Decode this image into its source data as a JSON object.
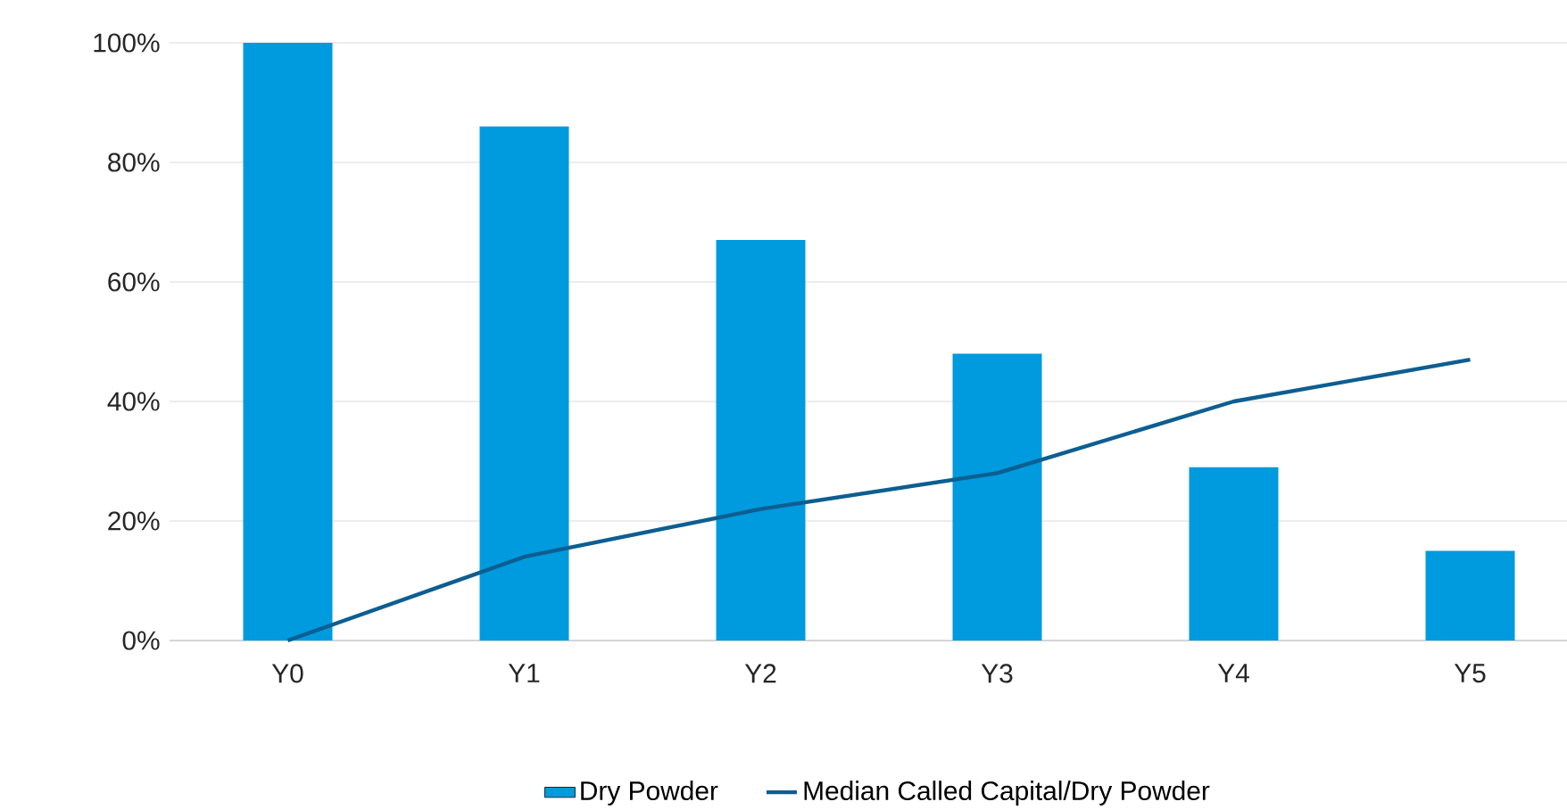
{
  "chart_data": {
    "type": "bar",
    "categories": [
      "Y0",
      "Y1",
      "Y2",
      "Y3",
      "Y4",
      "Y5"
    ],
    "series": [
      {
        "name": "Dry Powder",
        "color": "#009ade",
        "values": [
          100,
          86,
          67,
          48,
          29,
          15
        ]
      },
      {
        "name": "Median Called Capital/Dry Powder",
        "type": "line",
        "color": "#0d5e91",
        "values": [
          0,
          14,
          22,
          28,
          40,
          47
        ]
      }
    ],
    "ylim": [
      0,
      100
    ],
    "yticks": [
      {
        "value": 0,
        "label": "0%"
      },
      {
        "value": 20,
        "label": "20%"
      },
      {
        "value": 40,
        "label": "40%"
      },
      {
        "value": 60,
        "label": "60%"
      },
      {
        "value": 80,
        "label": "80%"
      },
      {
        "value": 100,
        "label": "100%"
      }
    ],
    "grid": "y",
    "legend": "bottom",
    "marker": "none",
    "line_style": "solid"
  }
}
